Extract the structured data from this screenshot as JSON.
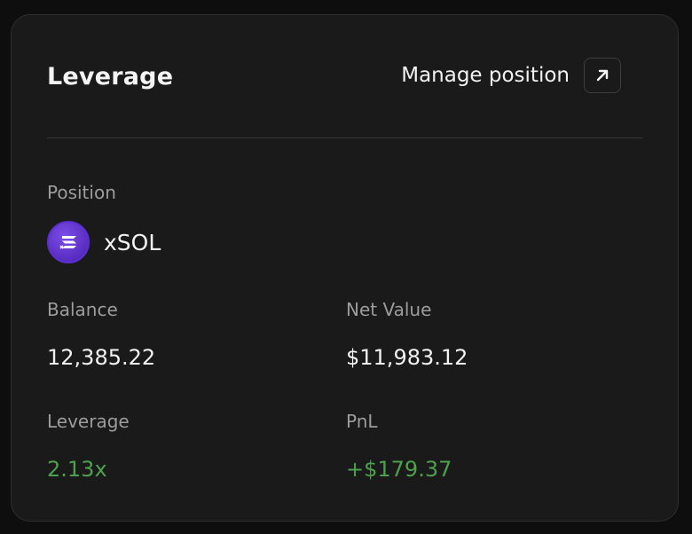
{
  "header": {
    "title": "Leverage",
    "manage_label": "Manage position"
  },
  "position": {
    "label": "Position",
    "asset_name": "xSOL",
    "asset_icon": "xsol-token-icon"
  },
  "stats": {
    "balance_label": "Balance",
    "balance_value": "12,385.22",
    "net_value_label": "Net Value",
    "net_value_value": "$11,983.12",
    "leverage_label": "Leverage",
    "leverage_value": "2.13x",
    "pnl_label": "PnL",
    "pnl_value": "+$179.37"
  },
  "colors": {
    "positive": "#4ea04e",
    "token_purple": "#6a3fe0"
  }
}
